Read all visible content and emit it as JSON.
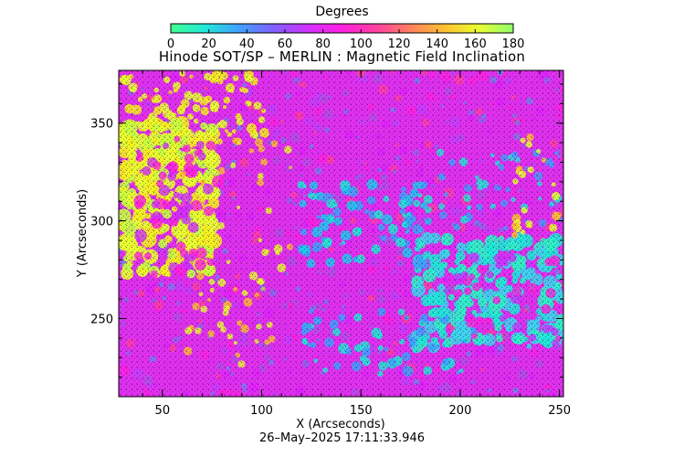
{
  "colorbar": {
    "title": "Degrees",
    "ticks": [
      "0",
      "20",
      "40",
      "60",
      "80",
      "100",
      "120",
      "140",
      "160",
      "180"
    ],
    "range": [
      0,
      180
    ],
    "colors": [
      "#40ff90",
      "#20e8d8",
      "#40a0ff",
      "#8060ff",
      "#d030ff",
      "#ff20e0",
      "#ff40a0",
      "#ff8060",
      "#ffc030",
      "#e8ff30",
      "#90ff70"
    ]
  },
  "chart_data": {
    "type": "heatmap",
    "title": "Hinode SOT/SP – MERLIN : Magnetic Field Inclination",
    "xlabel": "X (Arcseconds)",
    "ylabel": "Y (Arcseconds)",
    "xlim": [
      28,
      252
    ],
    "ylim": [
      210,
      377
    ],
    "xticks": [
      "50",
      "100",
      "150",
      "200",
      "250"
    ],
    "yticks": [
      "250",
      "300",
      "350"
    ],
    "value_unit": "Degrees",
    "value_range": [
      0,
      180
    ],
    "features": [
      {
        "name": "dominant background",
        "value": 100
      },
      {
        "name": "west bright region",
        "value": 165,
        "x": [
          35,
          110
        ],
        "y": [
          240,
          360
        ]
      },
      {
        "name": "east opposite-polarity region",
        "value": 20,
        "x": [
          165,
          250
        ],
        "y": [
          225,
          300
        ]
      }
    ]
  },
  "timestamp": "26–May–2025 17:11:33.946"
}
